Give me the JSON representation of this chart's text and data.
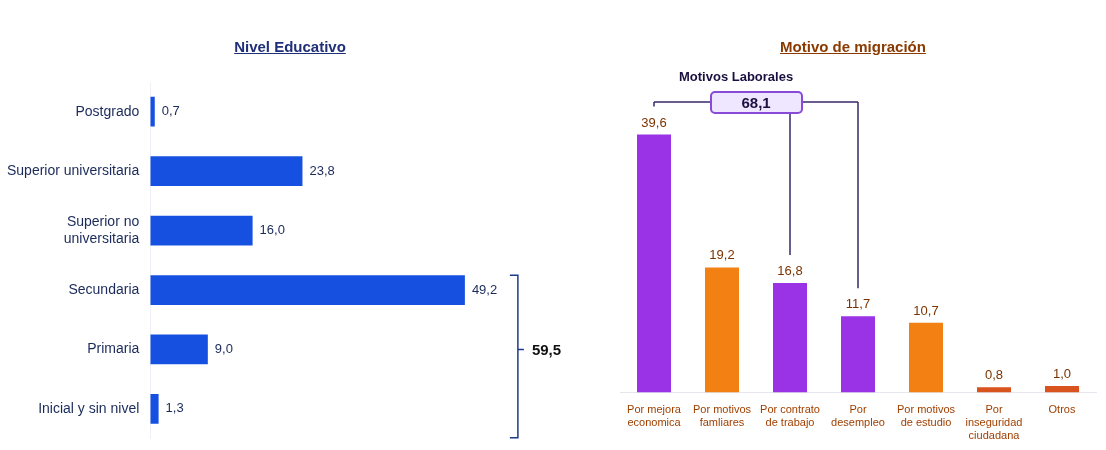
{
  "chart_data": [
    {
      "type": "bar",
      "title": "Nivel Educativo",
      "orientation": "horizontal",
      "categories": [
        "Postgrado",
        "Superior universitaria",
        "Superior no universitaria",
        "Secundaria",
        "Primaria",
        "Inicial y sin nivel"
      ],
      "values": [
        0.7,
        23.8,
        16.0,
        49.2,
        9.0,
        1.3
      ],
      "value_labels": [
        "0,7",
        "23,8",
        "16,0",
        "49,2",
        "9,0",
        "1,3"
      ],
      "color": "#1650e0",
      "annotations": [
        "59,5"
      ]
    },
    {
      "type": "bar",
      "title": "Motivo de migración",
      "categories": [
        "Por mejora economica",
        "Por motivos famliares",
        "Por contrato de trabajo",
        "Por desempleo",
        "Por motivos de estudio",
        "Por inseguridad ciudadana",
        "Otros"
      ],
      "values": [
        39.6,
        19.2,
        16.8,
        11.7,
        10.7,
        0.8,
        1.0
      ],
      "value_labels": [
        "39,6",
        "19,2",
        "16,8",
        "11,7",
        "10,7",
        "0,8",
        "1,0"
      ],
      "colors": [
        "#9a32e6",
        "#f28012",
        "#9a32e6",
        "#9a32e6",
        "#f28012",
        "#d9531e",
        "#d9531e"
      ],
      "annotations": [
        "Motivos Laborales",
        "68,1"
      ]
    }
  ]
}
